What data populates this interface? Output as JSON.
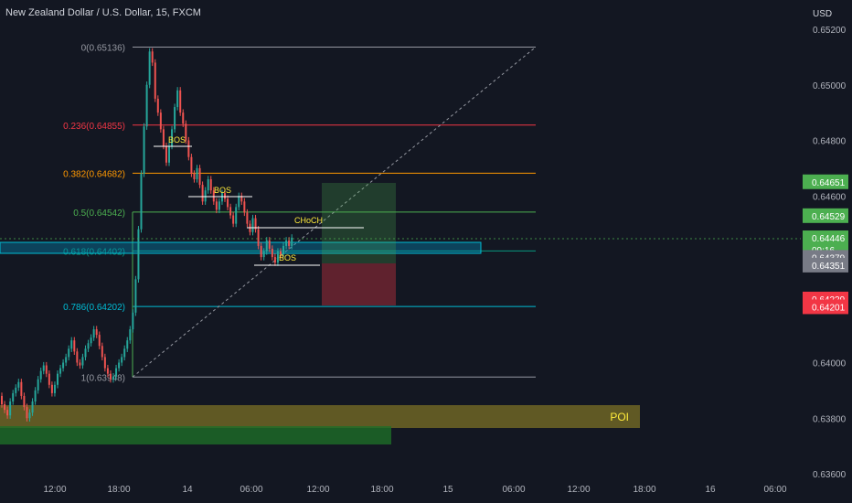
{
  "title": "New Zealand Dollar / U.S. Dollar, 15, FXCM",
  "currency": "USD",
  "chart_data": {
    "type": "candlestick",
    "y_ticks": [
      "0.65200",
      "0.65000",
      "0.64800",
      "0.64600",
      "0.64000",
      "0.63800",
      "0.63600"
    ],
    "x_ticks": [
      "12:00",
      "18:00",
      "14",
      "06:00",
      "12:00",
      "18:00",
      "15",
      "06:00",
      "12:00",
      "18:00",
      "16",
      "06:00"
    ],
    "ylim": [
      0.636,
      0.6525
    ],
    "fib_levels": [
      {
        "label": "0(0.65136)",
        "value": 0.65136,
        "color": "#9598a1"
      },
      {
        "label": "0.236(0.64855)",
        "value": 0.64855,
        "color": "#f23645"
      },
      {
        "label": "0.382(0.64682)",
        "value": 0.64682,
        "color": "#ff9800"
      },
      {
        "label": "0.5(0.64542)",
        "value": 0.64542,
        "color": "#4caf50"
      },
      {
        "label": "0.618(0.64402)",
        "value": 0.64402,
        "color": "#089981"
      },
      {
        "label": "0.786(0.64202)",
        "value": 0.64202,
        "color": "#00bcd4"
      },
      {
        "label": "1(0.63948)",
        "value": 0.63948,
        "color": "#9598a1"
      }
    ],
    "annotations": [
      "BOS",
      "BOS",
      "CHoCH",
      "BOS",
      "POI"
    ],
    "price_tags": [
      {
        "text": "0.64651",
        "value": 0.64651,
        "color": "#4caf50"
      },
      {
        "text": "0.64529",
        "value": 0.64529,
        "color": "#4caf50"
      },
      {
        "text": "0.64446",
        "value": 0.64446,
        "color": "#4caf50",
        "sub": "09:16"
      },
      {
        "text": "0.64379",
        "value": 0.64379,
        "color": "#787b86"
      },
      {
        "text": "0.64351",
        "value": 0.64351,
        "color": "#787b86"
      },
      {
        "text": "0.64229",
        "value": 0.64229,
        "color": "#f23645"
      },
      {
        "text": "0.64201",
        "value": 0.64201,
        "color": "#f23645"
      }
    ],
    "grid": false
  }
}
